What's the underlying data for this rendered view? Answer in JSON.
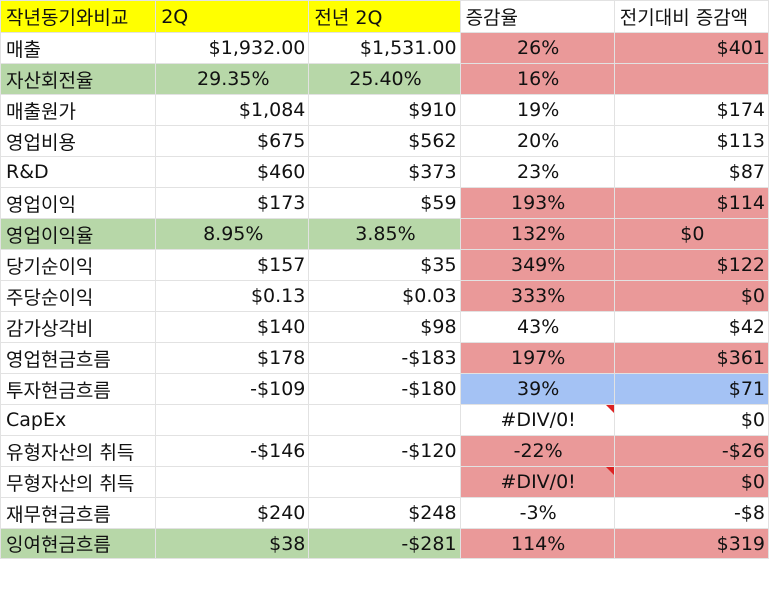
{
  "header": [
    "작년동기와비교",
    "2Q",
    "전년 2Q",
    "증감율",
    "전기대비 증감액"
  ],
  "rows": [
    {
      "cells": [
        "매출",
        "$1,932.00",
        "$1,531.00",
        "26%",
        "$401"
      ]
    },
    {
      "cells": [
        "자산회전율",
        "29.35%",
        "25.40%",
        "16%",
        ""
      ]
    },
    {
      "cells": [
        "매출원가",
        "$1,084",
        "$910",
        "19%",
        "$174"
      ]
    },
    {
      "cells": [
        "영업비용",
        "$675",
        "$562",
        "20%",
        "$113"
      ]
    },
    {
      "cells": [
        "R&D",
        "$460",
        "$373",
        "23%",
        "$87"
      ]
    },
    {
      "cells": [
        "영업이익",
        "$173",
        "$59",
        "193%",
        "$114"
      ]
    },
    {
      "cells": [
        "영업이익율",
        "8.95%",
        "3.85%",
        "132%",
        "$0"
      ]
    },
    {
      "cells": [
        "당기순이익",
        "$157",
        "$35",
        "349%",
        "$122"
      ]
    },
    {
      "cells": [
        "주당순이익",
        "$0.13",
        "$0.03",
        "333%",
        "$0"
      ]
    },
    {
      "cells": [
        "감가상각비",
        "$140",
        "$98",
        "43%",
        "$42"
      ]
    },
    {
      "cells": [
        "영업현금흐름",
        "$178",
        "-$183",
        "197%",
        "$361"
      ]
    },
    {
      "cells": [
        "투자현금흐름",
        "-$109",
        "-$180",
        "39%",
        "$71"
      ]
    },
    {
      "cells": [
        "CapEx",
        "",
        "",
        "#DIV/0!",
        "$0"
      ]
    },
    {
      "cells": [
        "유형자산의 취득",
        "-$146",
        "-$120",
        "-22%",
        "-$26"
      ]
    },
    {
      "cells": [
        "무형자산의 취득",
        "",
        "",
        "#DIV/0!",
        "$0"
      ]
    },
    {
      "cells": [
        "재무현금흐름",
        "$240",
        "$248",
        "-3%",
        "-$8"
      ]
    },
    {
      "cells": [
        "잉여현금흐름",
        "$38",
        "-$281",
        "114%",
        "$319"
      ]
    }
  ],
  "colors": {
    "header_yellow": "#ffff00",
    "green_fill": "#b7d7a8",
    "red_fill": "#ea9999",
    "blue_fill": "#a4c2f4",
    "comment_flag": "#dd2222"
  }
}
